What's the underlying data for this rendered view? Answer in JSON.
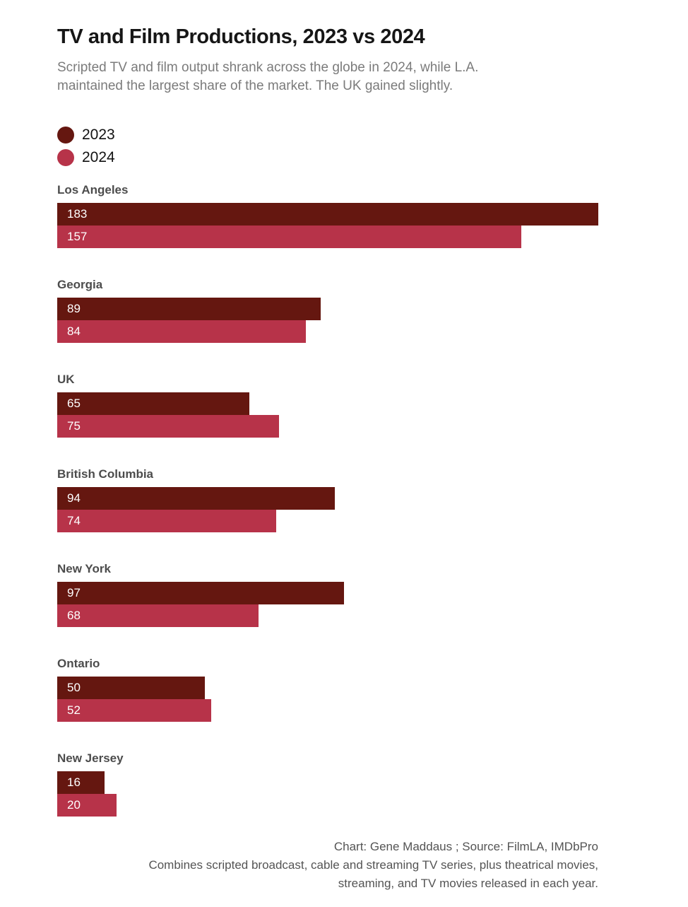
{
  "header": {
    "title": "TV and Film Productions, 2023 vs 2024",
    "subtitle_lines": [
      "Scripted TV and film output shrank across the globe in 2024, while L.A.",
      "maintained the largest share of the market. The UK gained slightly."
    ]
  },
  "legend": {
    "items": [
      {
        "label": "2023",
        "color": "#651710"
      },
      {
        "label": "2024",
        "color": "#b73349"
      }
    ]
  },
  "chart_data": {
    "type": "bar",
    "orientation": "horizontal",
    "title": "TV and Film Productions, 2023 vs 2024",
    "categories": [
      "Los Angeles",
      "Georgia",
      "UK",
      "British Columbia",
      "New York",
      "Ontario",
      "New Jersey"
    ],
    "series": [
      {
        "name": "2023",
        "color": "#651710",
        "values": [
          183,
          89,
          65,
          94,
          97,
          50,
          16
        ]
      },
      {
        "name": "2024",
        "color": "#b73349",
        "values": [
          157,
          84,
          75,
          74,
          68,
          52,
          20
        ]
      }
    ],
    "xlim": [
      0,
      183
    ],
    "value_labels": "inside-left",
    "grid": false,
    "legend_position": "top-left"
  },
  "footer": {
    "lines": [
      "Chart: Gene Maddaus ; Source: FilmLA, IMDbPro",
      "Combines scripted broadcast, cable and streaming TV series, plus theatrical movies,",
      "streaming, and TV movies released in each year."
    ]
  }
}
